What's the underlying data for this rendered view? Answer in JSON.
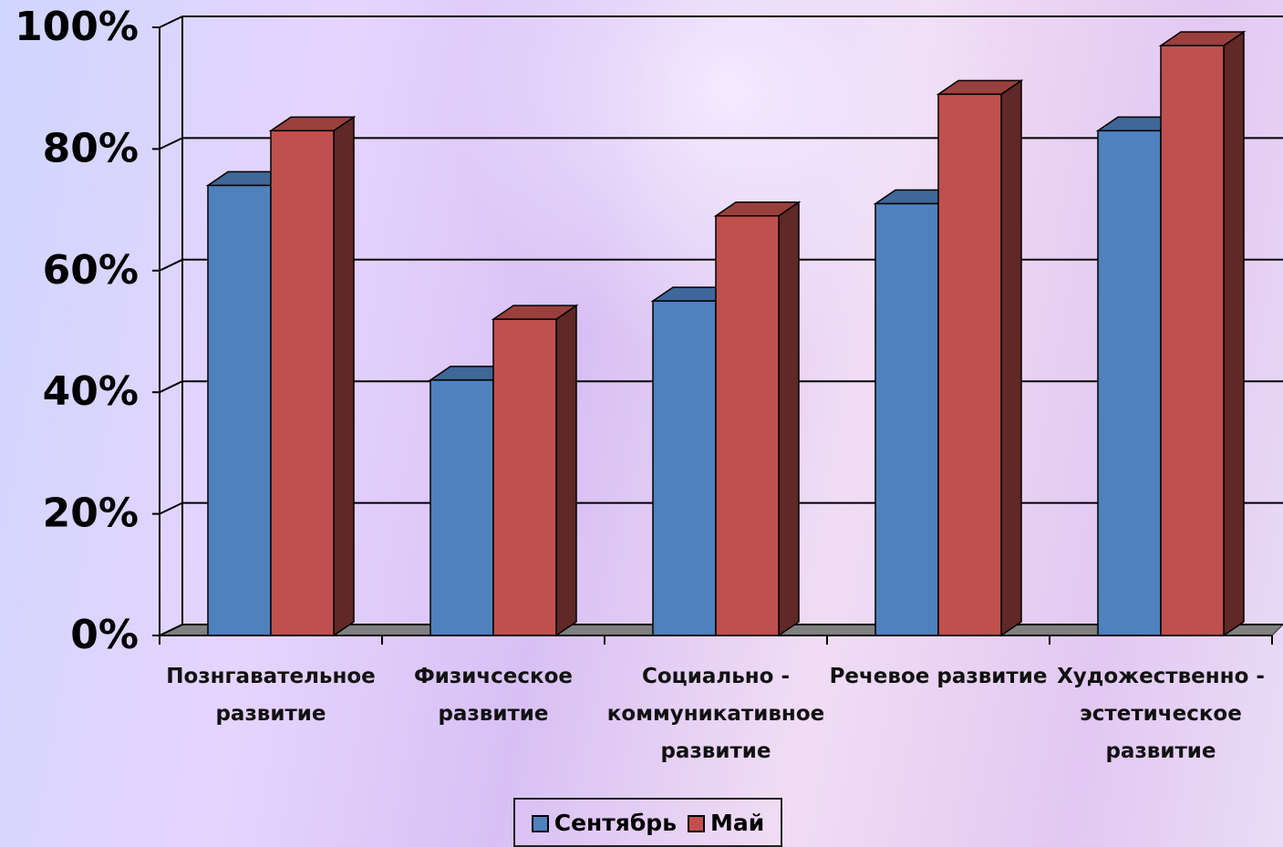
{
  "chart_data": {
    "type": "bar3d",
    "categories": [
      "Познгавательное развитие",
      "Физичсеское развитие",
      "Социально - коммуникативное развитие",
      "Речевое  развитие",
      "Художественно - эстетическое развитие"
    ],
    "series": [
      {
        "name": "Сентябрь",
        "color": "#4f81bd",
        "values": [
          74,
          42,
          55,
          71,
          83
        ]
      },
      {
        "name": "Май",
        "color": "#c0504d",
        "values": [
          83,
          52,
          69,
          89,
          97
        ]
      }
    ],
    "ylim": [
      0,
      100
    ],
    "yticks": [
      {
        "value": 0,
        "label": "0%"
      },
      {
        "value": 20,
        "label": "20%"
      },
      {
        "value": 40,
        "label": "40%"
      },
      {
        "value": 60,
        "label": "60%"
      },
      {
        "value": 80,
        "label": "80%"
      },
      {
        "value": 100,
        "label": "100%"
      }
    ],
    "grid": true
  }
}
